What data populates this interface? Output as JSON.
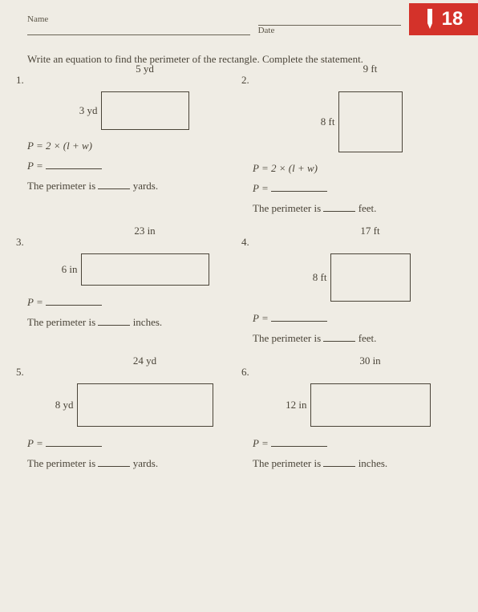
{
  "header": {
    "name_label": "Name",
    "date_label": "Date",
    "badge_number": "18"
  },
  "instructions": "Write an equation to find the perimeter of the rectangle. Complete the statement.",
  "formula_template": "P = 2 × (l + w)",
  "p_equals": "P =",
  "perimeter_prefix": "The perimeter is",
  "units": {
    "yards": "yards.",
    "feet": "feet.",
    "inches": "inches."
  },
  "problems": [
    {
      "num": "1.",
      "top_dim": "5 yd",
      "left_dim": "3 yd",
      "rect_w": 110,
      "rect_h": 48,
      "show_formula": true,
      "unit": "yards."
    },
    {
      "num": "2.",
      "top_dim": "9 ft",
      "left_dim": "8 ft",
      "rect_w": 80,
      "rect_h": 76,
      "show_formula": true,
      "unit": "feet."
    },
    {
      "num": "3.",
      "top_dim": "23 in",
      "left_dim": "6 in",
      "rect_w": 160,
      "rect_h": 40,
      "show_formula": false,
      "unit": "inches."
    },
    {
      "num": "4.",
      "top_dim": "17 ft",
      "left_dim": "8 ft",
      "rect_w": 100,
      "rect_h": 60,
      "show_formula": false,
      "unit": "feet."
    },
    {
      "num": "5.",
      "top_dim": "24 yd",
      "left_dim": "8 yd",
      "rect_w": 170,
      "rect_h": 54,
      "show_formula": false,
      "unit": "yards."
    },
    {
      "num": "6.",
      "top_dim": "30 in",
      "left_dim": "12 in",
      "rect_w": 150,
      "rect_h": 54,
      "show_formula": false,
      "unit": "inches."
    }
  ],
  "colors": {
    "page_bg": "#efece4",
    "text": "#4a4438",
    "badge_bg": "#d4322a",
    "badge_fg": "#ffffff",
    "line": "#6a6456"
  }
}
